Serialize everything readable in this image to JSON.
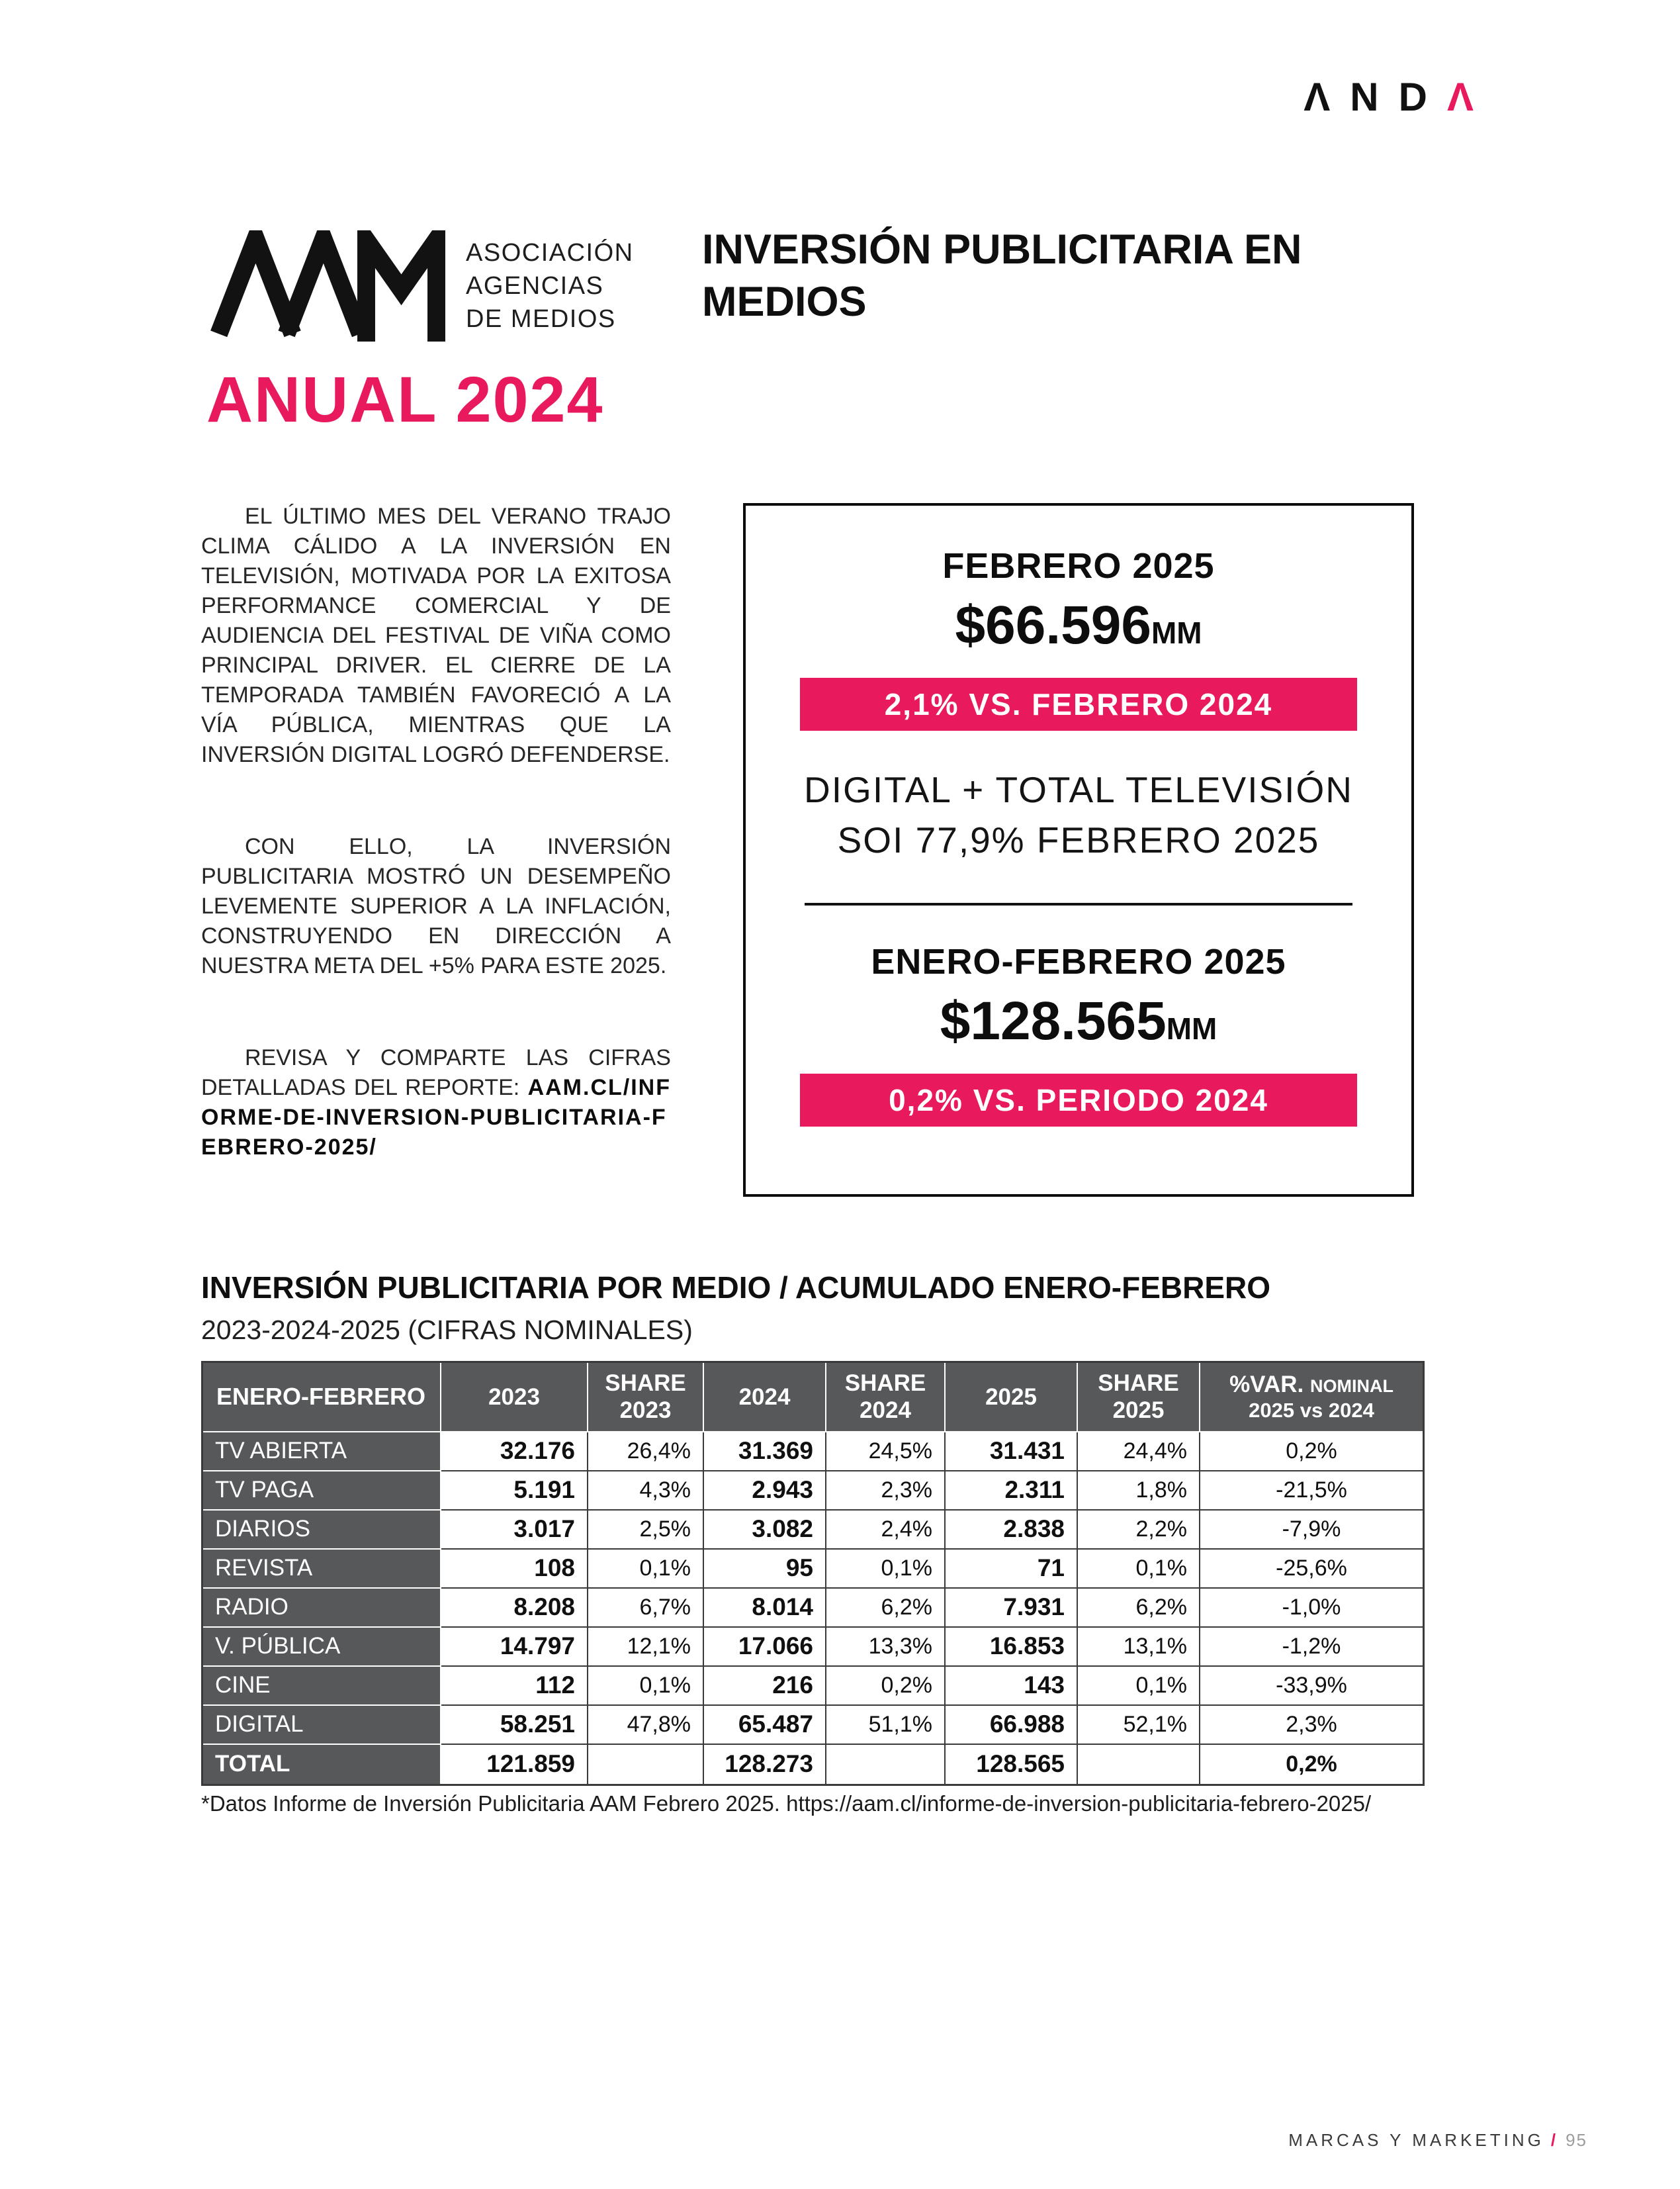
{
  "colors": {
    "accent": "#e8195c",
    "table_header": "#57585a"
  },
  "brand": {
    "anda": {
      "black_letters": "ΛND",
      "accent_letter": "Λ"
    },
    "aam_caption": [
      "ASOCIACIÓN",
      "AGENCIAS",
      "DE MEDIOS"
    ]
  },
  "header": {
    "title": "INVERSIÓN PUBLICITARIA EN MEDIOS",
    "edition": "ANUAL 2024"
  },
  "article": {
    "paragraphs": [
      "EL ÚLTIMO MES DEL VERANO TRAJO CLIMA CÁLIDO A LA INVERSIÓN EN TELEVISIÓN, MOTIVADA POR LA EXITOSA PERFORMANCE COMERCIAL Y DE AUDIENCIA DEL FESTIVAL DE VIÑA COMO PRINCIPAL DRIVER. EL CIERRE DE LA TEMPORADA TAMBIÉN FAVORECIÓ A LA VÍA PÚBLICA, MIENTRAS QUE LA INVERSIÓN DIGITAL LOGRÓ DEFENDERSE.",
      "CON ELLO, LA INVERSIÓN PUBLICITARIA MOSTRÓ UN DESEMPEÑO LEVEMENTE SUPERIOR A LA INFLACIÓN, CONSTRUYENDO EN DIRECCIÓN A NUESTRA META DEL +5% PARA ESTE 2025."
    ],
    "cta_prefix": "REVISA Y COMPARTE LAS CIFRAS DETALLADAS DEL REPORTE: ",
    "cta_link": "AAM.CL/INFORME-DE-INVERSION-PUBLICITARIA-FEBRERO-2025/"
  },
  "highlight_box": {
    "top": {
      "period": "FEBRERO 2025",
      "amount": "$66.596",
      "amount_unit": "MM",
      "badge": "2,1% VS. FEBRERO 2024",
      "note_line1": "DIGITAL + TOTAL TELEVISIÓN",
      "note_line2": "SOI 77,9% FEBRERO 2025"
    },
    "bottom": {
      "period": "ENERO-FEBRERO 2025",
      "amount": "$128.565",
      "amount_unit": "MM",
      "badge": "0,2% VS. PERIODO 2024"
    }
  },
  "table_section": {
    "title": "INVERSIÓN PUBLICITARIA POR MEDIO / ACUMULADO ENERO-FEBRERO",
    "subtitle": "2023-2024-2025 (CIFRAS NOMINALES)",
    "footnote": "*Datos Informe de Inversión Publicitaria AAM Febrero 2025. https://aam.cl/informe-de-inversion-publicitaria-febrero-2025/"
  },
  "table": {
    "headers": [
      {
        "line1": "ENERO-FEBRERO",
        "line2": ""
      },
      {
        "line1": "2023",
        "line2": ""
      },
      {
        "line1": "SHARE",
        "line2": "2023"
      },
      {
        "line1": "2024",
        "line2": ""
      },
      {
        "line1": "SHARE",
        "line2": "2024"
      },
      {
        "line1": "2025",
        "line2": ""
      },
      {
        "line1": "SHARE",
        "line2": "2025"
      },
      {
        "line1": "%VAR.",
        "line1_small": "NOMINAL",
        "line2": "2025 vs 2024"
      }
    ],
    "rows": [
      {
        "label": "TV ABIERTA",
        "v2023": "32.176",
        "s2023": "26,4%",
        "v2024": "31.369",
        "s2024": "24,5%",
        "v2025": "31.431",
        "s2025": "24,4%",
        "var": "0,2%"
      },
      {
        "label": "TV PAGA",
        "v2023": "5.191",
        "s2023": "4,3%",
        "v2024": "2.943",
        "s2024": "2,3%",
        "v2025": "2.311",
        "s2025": "1,8%",
        "var": "-21,5%"
      },
      {
        "label": "DIARIOS",
        "v2023": "3.017",
        "s2023": "2,5%",
        "v2024": "3.082",
        "s2024": "2,4%",
        "v2025": "2.838",
        "s2025": "2,2%",
        "var": "-7,9%"
      },
      {
        "label": "REVISTA",
        "v2023": "108",
        "s2023": "0,1%",
        "v2024": "95",
        "s2024": "0,1%",
        "v2025": "71",
        "s2025": "0,1%",
        "var": "-25,6%"
      },
      {
        "label": "RADIO",
        "v2023": "8.208",
        "s2023": "6,7%",
        "v2024": "8.014",
        "s2024": "6,2%",
        "v2025": "7.931",
        "s2025": "6,2%",
        "var": "-1,0%"
      },
      {
        "label": "V. PÚBLICA",
        "v2023": "14.797",
        "s2023": "12,1%",
        "v2024": "17.066",
        "s2024": "13,3%",
        "v2025": "16.853",
        "s2025": "13,1%",
        "var": "-1,2%"
      },
      {
        "label": "CINE",
        "v2023": "112",
        "s2023": "0,1%",
        "v2024": "216",
        "s2024": "0,2%",
        "v2025": "143",
        "s2025": "0,1%",
        "var": "-33,9%"
      },
      {
        "label": "DIGITAL",
        "v2023": "58.251",
        "s2023": "47,8%",
        "v2024": "65.487",
        "s2024": "51,1%",
        "v2025": "66.988",
        "s2025": "52,1%",
        "var": "2,3%"
      },
      {
        "label": "TOTAL",
        "v2023": "121.859",
        "s2023": "",
        "v2024": "128.273",
        "s2024": "",
        "v2025": "128.565",
        "s2025": "",
        "var": "0,2%",
        "bold": true
      }
    ]
  },
  "footer": {
    "magazine": "MARCAS Y MARKETING",
    "separator": "/",
    "page_number": "95"
  }
}
